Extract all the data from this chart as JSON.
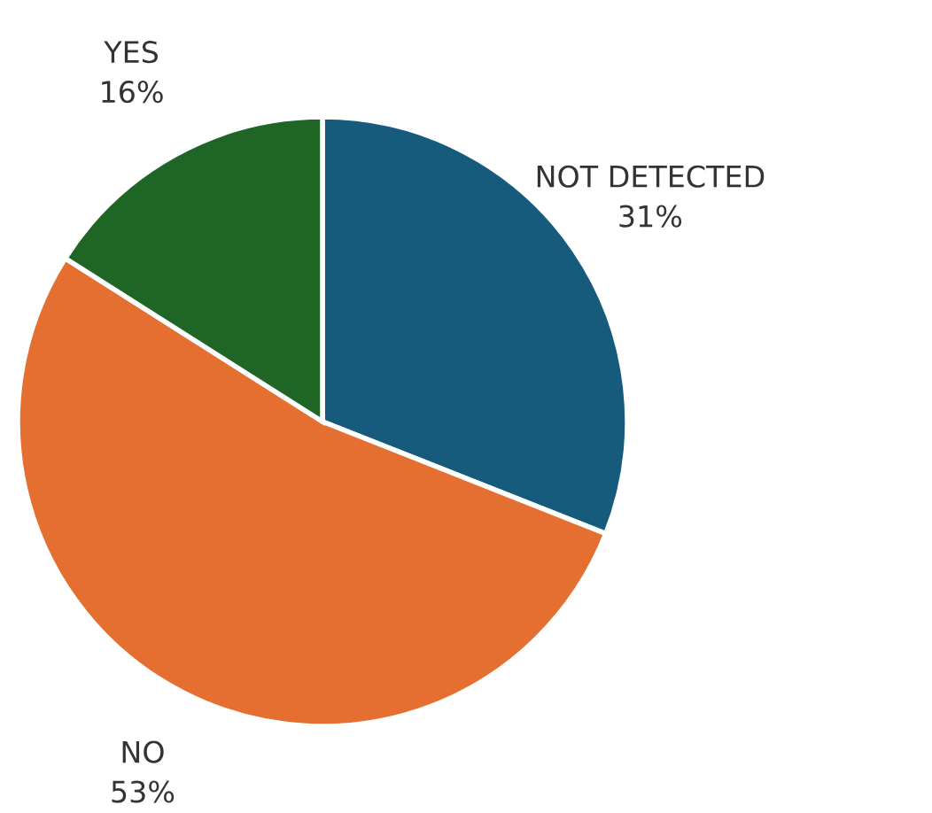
{
  "chart_data": {
    "type": "pie",
    "categories": [
      "NOT DETECTED",
      "NO",
      "YES"
    ],
    "values": [
      31,
      53,
      16
    ],
    "value_labels": [
      "31%",
      "53%",
      "16%"
    ],
    "colors": [
      "#175b7c",
      "#e56f31",
      "#1e6526"
    ]
  }
}
